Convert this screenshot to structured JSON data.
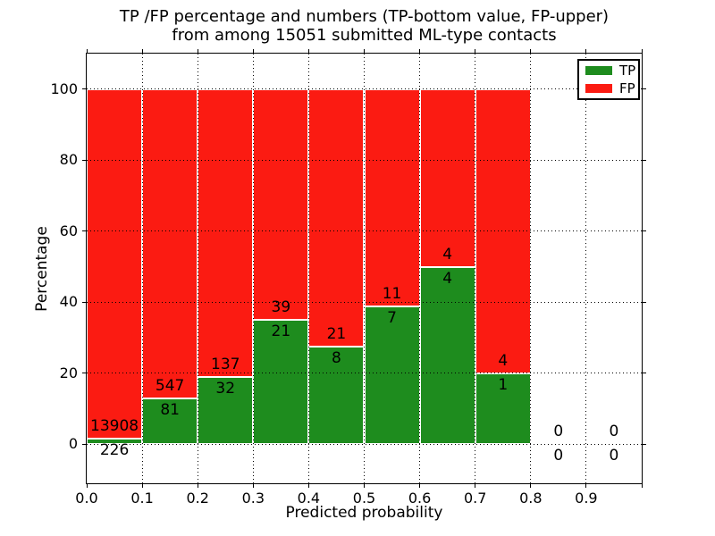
{
  "figure_title": {
    "line1": "TP /FP percentage and numbers (TP-bottom value, FP-upper)",
    "line2": "from among 15051 submitted ML-type contacts"
  },
  "chart_data": {
    "type": "bar",
    "subtype": "stacked-percentage",
    "title": "TP /FP percentage and numbers (TP-bottom value, FP-upper)\nfrom among 15051 submitted ML-type contacts",
    "xlabel": "Predicted probability",
    "ylabel": "Percentage",
    "xlim": [
      0.0,
      1.0
    ],
    "ylim": [
      -11,
      110
    ],
    "grid": true,
    "grid_style": "dotted",
    "legend_position": "upper right",
    "xticks": [
      0.0,
      0.1,
      0.2,
      0.3,
      0.4,
      0.5,
      0.6,
      0.7,
      0.8,
      0.9
    ],
    "xtick_labels": [
      "0.0",
      "0.1",
      "0.2",
      "0.3",
      "0.4",
      "0.5",
      "0.6",
      "0.7",
      "0.8",
      "0.9"
    ],
    "yticks": [
      0,
      20,
      40,
      60,
      80,
      100
    ],
    "colors": {
      "tp": "#1e8c1e",
      "fp": "#fb1b12",
      "bar_edge": "#ffffff"
    },
    "legend": [
      {
        "label": "TP",
        "color_key": "tp"
      },
      {
        "label": "FP",
        "color_key": "fp"
      }
    ],
    "total_submitted": 15051,
    "bins": [
      {
        "range": [
          0.0,
          0.1
        ],
        "tp": 226,
        "fp": 13908,
        "tp_percent": 1.6
      },
      {
        "range": [
          0.1,
          0.2
        ],
        "tp": 81,
        "fp": 547,
        "tp_percent": 12.9
      },
      {
        "range": [
          0.2,
          0.3
        ],
        "tp": 32,
        "fp": 137,
        "tp_percent": 18.9
      },
      {
        "range": [
          0.3,
          0.4
        ],
        "tp": 21,
        "fp": 39,
        "tp_percent": 35.0
      },
      {
        "range": [
          0.4,
          0.5
        ],
        "tp": 8,
        "fp": 21,
        "tp_percent": 27.6
      },
      {
        "range": [
          0.5,
          0.6
        ],
        "tp": 7,
        "fp": 11,
        "tp_percent": 38.9
      },
      {
        "range": [
          0.6,
          0.7
        ],
        "tp": 4,
        "fp": 4,
        "tp_percent": 50.0
      },
      {
        "range": [
          0.7,
          0.8
        ],
        "tp": 1,
        "fp": 4,
        "tp_percent": 20.0
      },
      {
        "range": [
          0.8,
          0.9
        ],
        "tp": 0,
        "fp": 0,
        "tp_percent": 0
      },
      {
        "range": [
          0.9,
          1.0
        ],
        "tp": 0,
        "fp": 0,
        "tp_percent": 0
      }
    ]
  }
}
